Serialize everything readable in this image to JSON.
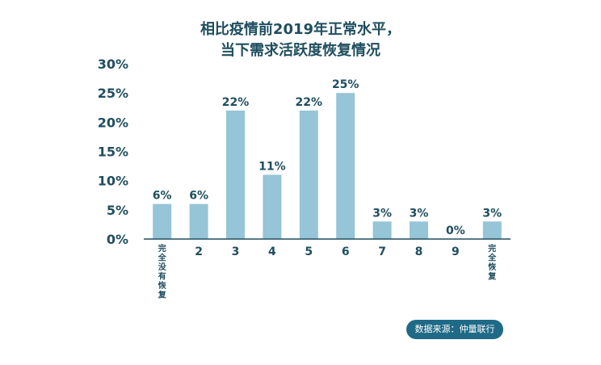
{
  "title": {
    "line1": "相比疫情前2019年正常水平，",
    "line2": "当下需求活跃度恢复情况"
  },
  "source": "数据来源：仲量联行",
  "colors": {
    "bar": "#95c5d6",
    "text": "#1f4e5f",
    "axis": "#1f4e5f",
    "badge_bg": "#1f6a86",
    "badge_text": "#ffffff"
  },
  "chart_data": {
    "type": "bar",
    "title": "相比疫情前2019年正常水平，当下需求活跃度恢复情况",
    "xlabel": "",
    "ylabel": "",
    "ylim": [
      0,
      30
    ],
    "yticks": [
      "0%",
      "5%",
      "10%",
      "15%",
      "20%",
      "25%",
      "30%"
    ],
    "ytick_values": [
      0,
      5,
      10,
      15,
      20,
      25,
      30
    ],
    "categories": [
      "完全没有恢复",
      "2",
      "3",
      "4",
      "5",
      "6",
      "7",
      "8",
      "9",
      "完全恢复"
    ],
    "values": [
      6,
      6,
      22,
      11,
      22,
      25,
      3,
      3,
      0,
      3
    ],
    "value_labels": [
      "6%",
      "6%",
      "22%",
      "11%",
      "22%",
      "25%",
      "3%",
      "3%",
      "0%",
      "3%"
    ],
    "grid": false,
    "legend": "none"
  }
}
